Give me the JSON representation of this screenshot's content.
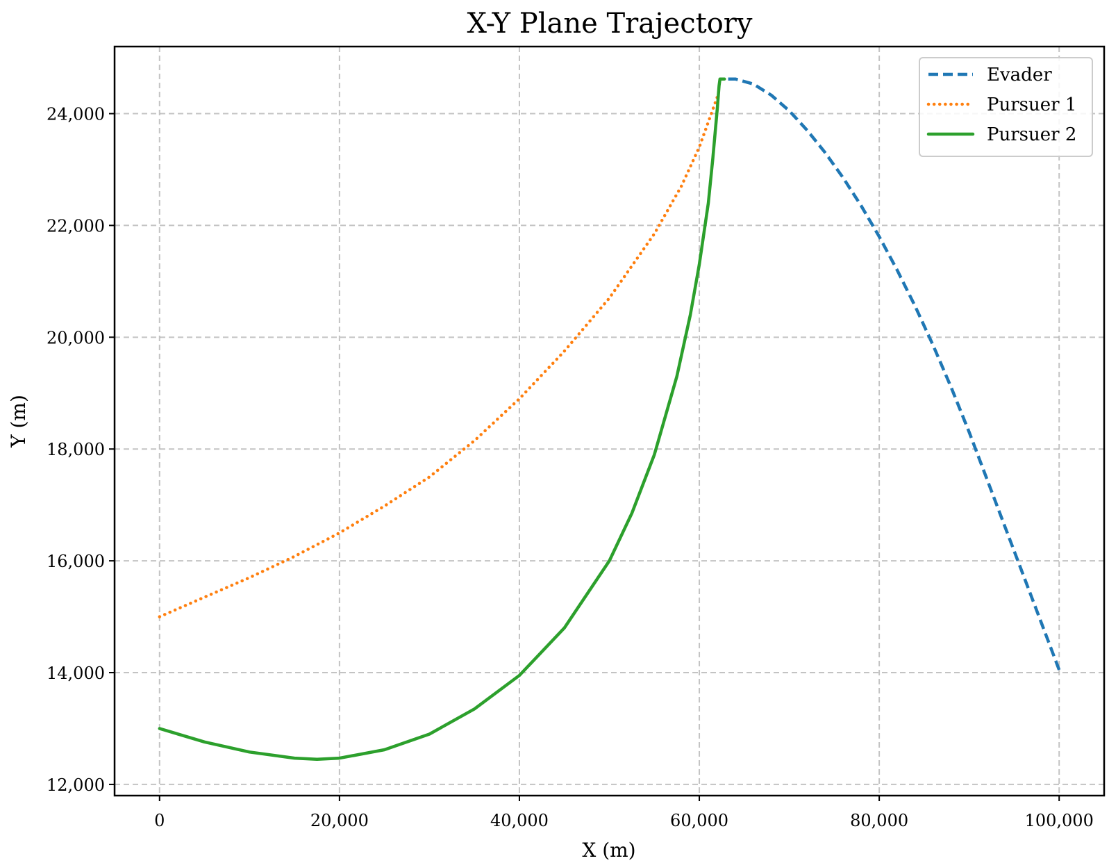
{
  "chart_data": {
    "type": "line",
    "title": "X-Y Plane Trajectory",
    "xlabel": "X (m)",
    "ylabel": "Y (m)",
    "xlim": [
      -5000,
      105000
    ],
    "ylim": [
      11800,
      25200
    ],
    "xticks": [
      0,
      20000,
      40000,
      60000,
      80000,
      100000
    ],
    "xtick_labels": [
      "0",
      "20,000",
      "40,000",
      "60,000",
      "80,000",
      "100,000"
    ],
    "yticks": [
      12000,
      14000,
      16000,
      18000,
      20000,
      22000,
      24000
    ],
    "ytick_labels": [
      "12,000",
      "14,000",
      "16,000",
      "18,000",
      "20,000",
      "22,000",
      "24,000"
    ],
    "grid": true,
    "legend_position": "top-right",
    "series": [
      {
        "name": "Evader",
        "color": "#1f77b4",
        "style": "dashed",
        "x": [
          100000,
          98000,
          96000,
          94000,
          92000,
          90000,
          88000,
          86000,
          84000,
          82000,
          80000,
          78000,
          76000,
          74000,
          72000,
          70000,
          68000,
          66000,
          64000,
          62800
        ],
        "y": [
          14050,
          14900,
          15750,
          16600,
          17450,
          18300,
          19100,
          19850,
          20550,
          21200,
          21800,
          22350,
          22850,
          23300,
          23700,
          24050,
          24330,
          24530,
          24620,
          24620
        ]
      },
      {
        "name": "Pursuer 1",
        "color": "#ff7f0e",
        "style": "dotted",
        "x": [
          0,
          5000,
          10000,
          15000,
          20000,
          25000,
          30000,
          35000,
          40000,
          45000,
          50000,
          55000,
          58000,
          60000,
          62000
        ],
        "y": [
          15000,
          15350,
          15700,
          16080,
          16500,
          16980,
          17500,
          18150,
          18900,
          19750,
          20700,
          21850,
          22700,
          23400,
          24300
        ]
      },
      {
        "name": "Pursuer 2",
        "color": "#2ca02c",
        "style": "solid",
        "x": [
          0,
          5000,
          10000,
          15000,
          17500,
          20000,
          25000,
          30000,
          35000,
          40000,
          45000,
          50000,
          52500,
          55000,
          57500,
          59000,
          60000,
          61000,
          61500,
          62000,
          62200,
          62300,
          62800
        ],
        "y": [
          13000,
          12760,
          12580,
          12470,
          12450,
          12470,
          12620,
          12900,
          13350,
          13950,
          14800,
          16000,
          16850,
          17900,
          19300,
          20400,
          21300,
          22400,
          23200,
          24100,
          24500,
          24620,
          24620
        ]
      }
    ]
  }
}
